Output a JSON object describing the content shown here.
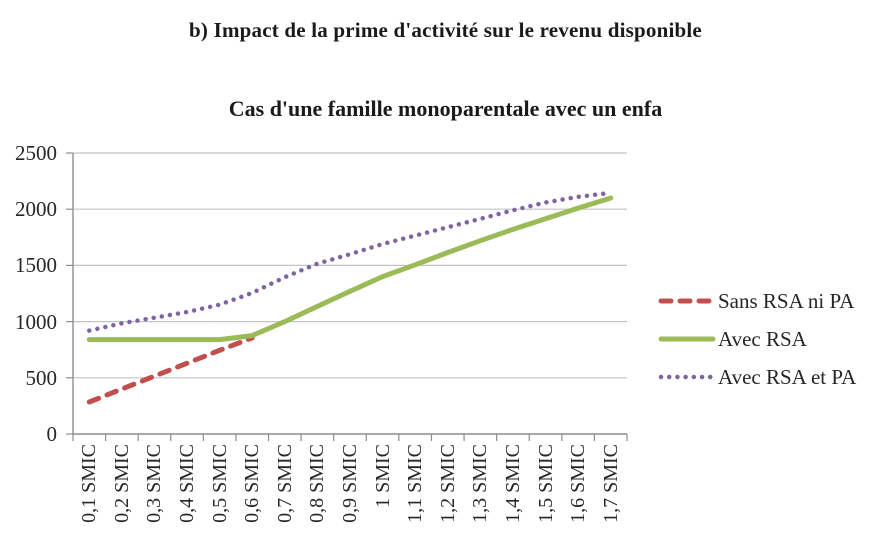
{
  "figure": {
    "title": "b) Impact de la prime d'activité sur le revenu disponible"
  },
  "chart_data": {
    "type": "line",
    "title": "Cas d'une famille monoparentale avec un enfa",
    "xlabel": "",
    "ylabel": "",
    "ylim": [
      0,
      2500
    ],
    "grid": true,
    "legend_position": "right",
    "y_ticks": [
      0,
      500,
      1000,
      1500,
      2000,
      2500
    ],
    "y_tick_labels": [
      "0",
      "500",
      "1000",
      "1500",
      "2000",
      "2500"
    ],
    "categories": [
      "0,1 SMIC",
      "0,2 SMIC",
      "0,3 SMIC",
      "0,4 SMIC",
      "0,5 SMIC",
      "0,6 SMIC",
      "0,7 SMIC",
      "0,8 SMIC",
      "0,9 SMIC",
      "1 SMIC",
      "1,1 SMIC",
      "1,2 SMIC",
      "1,3 SMIC",
      "1,4 SMIC",
      "1,5 SMIC",
      "1,6 SMIC",
      "1,7 SMIC"
    ],
    "series": [
      {
        "name": "Sans RSA ni PA",
        "color": "#C0504D",
        "style": "dashed",
        "values": [
          285,
          400,
          515,
          630,
          745,
          855,
          null,
          null,
          null,
          null,
          null,
          null,
          null,
          null,
          null,
          null,
          null
        ]
      },
      {
        "name": "Avec RSA",
        "color": "#9BBB59",
        "style": "solid",
        "values": [
          840,
          840,
          840,
          840,
          840,
          875,
          1000,
          1135,
          1270,
          1400,
          1505,
          1615,
          1720,
          1820,
          1915,
          2010,
          2100
        ]
      },
      {
        "name": "Avec RSA et PA",
        "color": "#8064A2",
        "style": "dotted",
        "values": [
          920,
          985,
          1035,
          1085,
          1150,
          1255,
          1395,
          1515,
          1600,
          1690,
          1765,
          1840,
          1915,
          1990,
          2060,
          2110,
          2145
        ]
      }
    ]
  }
}
